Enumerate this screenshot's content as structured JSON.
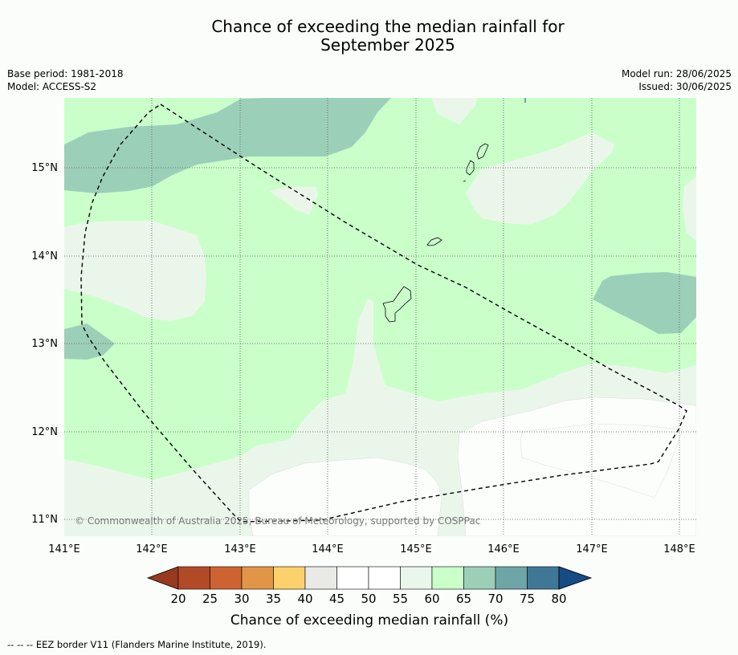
{
  "title_line1": "Chance of exceeding the median rainfall for",
  "title_line2": "September 2025",
  "meta_left": [
    "Base period: 1981-2018",
    "Model: ACCESS-S2"
  ],
  "meta_right": [
    "Model run: 28/06/2025",
    "Issued: 30/06/2025"
  ],
  "copyright": "© Commonwealth of Australia 2025, Bureau of Meteorology, supported by COSPPac",
  "footnote": "--  --  -- EEZ border V11 (Flanders Marine Institute, 2019).",
  "map": {
    "lon_ticks": [
      "141°E",
      "142°E",
      "143°E",
      "144°E",
      "145°E",
      "146°E",
      "147°E",
      "148°E"
    ],
    "lat_ticks": [
      "15°N",
      "14°N",
      "13°N",
      "12°N",
      "11°N"
    ],
    "lon_range": [
      141.0,
      148.2
    ],
    "lat_range": [
      10.8,
      15.8
    ]
  },
  "colorbar": {
    "label": "Chance of exceeding median rainfall (%)",
    "ticks": [
      "20",
      "25",
      "30",
      "35",
      "40",
      "45",
      "50",
      "55",
      "60",
      "65",
      "70",
      "75",
      "80"
    ],
    "under_color": "#973a20",
    "colors": [
      "#b24a27",
      "#cd6330",
      "#e29547",
      "#fcd06b",
      "#e9e9e6",
      "#ffffff",
      "#ffffff",
      "#ebf6ea",
      "#caffca",
      "#9ccfb8",
      "#6ea5a6",
      "#3f7897"
    ],
    "over_color": "#154c86"
  },
  "colors": {
    "band_55_60": "#ebf6ea",
    "band_60_65": "#caffca",
    "band_65_70": "#9ccfb8",
    "band_50_55": "#fcfefc"
  }
}
